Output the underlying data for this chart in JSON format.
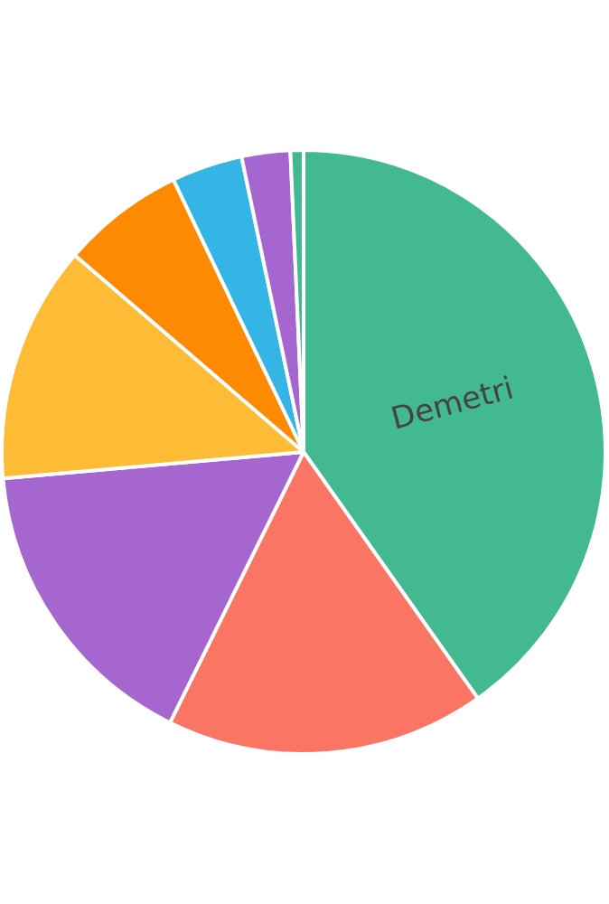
{
  "chart_data": {
    "type": "pie",
    "categories": [
      "Demetri",
      null,
      null,
      null,
      null,
      null,
      null,
      null
    ],
    "values": [
      40.2,
      17.1,
      16.3,
      12.7,
      6.6,
      3.8,
      2.6,
      0.7
    ],
    "colors": [
      "#43b991",
      "#fa7564",
      "#a666cf",
      "#fdbb36",
      "#fe8a04",
      "#35b5e5",
      "#a666cf",
      "#43b991"
    ],
    "legend": false
  }
}
